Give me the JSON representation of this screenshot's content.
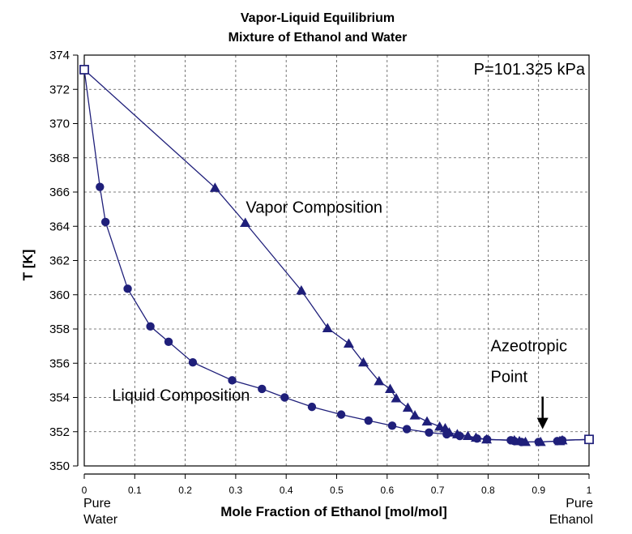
{
  "chart_data": {
    "type": "line",
    "title": "Vapor-Liquid Equilibrium",
    "subtitle": "Mixture of Ethanol and Water",
    "xlabel": "Mole Fraction of Ethanol [mol/mol]",
    "ylabel": "T [K]",
    "xlim": [
      0,
      1
    ],
    "ylim": [
      350,
      374
    ],
    "grid": true,
    "x_ticks": [
      "0",
      "0.1",
      "0.2",
      "0.3",
      "0.4",
      "0.5",
      "0.6",
      "0.7",
      "0.8",
      "0.9",
      "1"
    ],
    "y_ticks": [
      "350",
      "352",
      "354",
      "356",
      "358",
      "360",
      "362",
      "364",
      "366",
      "368",
      "370",
      "372",
      "374"
    ],
    "x_end_labels": {
      "left": [
        "Pure",
        "Water"
      ],
      "right": [
        "Pure",
        "Ethanol"
      ]
    },
    "pressure_label": "P=101.325 kPa",
    "series": [
      {
        "name": "Vapor Composition",
        "marker": "triangle",
        "color": "#1f1f7a",
        "x": [
          0.0,
          0.259,
          0.319,
          0.43,
          0.482,
          0.524,
          0.553,
          0.584,
          0.606,
          0.618,
          0.641,
          0.655,
          0.679,
          0.704,
          0.715,
          0.723,
          0.739,
          0.76,
          0.776,
          0.797,
          0.852,
          0.862,
          0.874,
          0.904,
          0.942,
          0.947,
          1.0
        ],
        "y": [
          373.15,
          366.25,
          364.2,
          360.25,
          358.05,
          357.15,
          356.05,
          354.95,
          354.5,
          353.95,
          353.4,
          352.95,
          352.6,
          352.3,
          352.2,
          351.95,
          351.85,
          351.75,
          351.65,
          351.55,
          351.5,
          351.45,
          351.4,
          351.4,
          351.45,
          351.5,
          351.55
        ]
      },
      {
        "name": "Liquid Composition",
        "marker": "circle",
        "color": "#1f1f7a",
        "x": [
          0.0,
          0.031,
          0.042,
          0.086,
          0.131,
          0.167,
          0.215,
          0.293,
          0.352,
          0.397,
          0.451,
          0.509,
          0.563,
          0.61,
          0.639,
          0.683,
          0.718,
          0.744,
          0.778,
          0.798,
          0.845,
          0.852,
          0.866,
          0.9,
          0.937,
          0.947,
          1.0
        ],
        "y": [
          373.15,
          366.3,
          364.25,
          360.35,
          358.15,
          357.25,
          356.05,
          355.0,
          354.5,
          354.0,
          353.45,
          353.0,
          352.65,
          352.35,
          352.15,
          351.95,
          351.85,
          351.75,
          351.6,
          351.55,
          351.5,
          351.45,
          351.4,
          351.4,
          351.45,
          351.5,
          351.55
        ]
      }
    ],
    "annotations": [
      {
        "text": "Vapor Composition",
        "x": 0.32,
        "y": 364.8
      },
      {
        "text": "Liquid Composition",
        "x": 0.055,
        "y": 353.8
      },
      {
        "text": "Azeotropic",
        "x": 0.805,
        "y": 356.7
      },
      {
        "text": "Point",
        "x": 0.805,
        "y": 354.9
      }
    ],
    "arrow": {
      "from": [
        0.908,
        354.05
      ],
      "to": [
        0.908,
        352.15
      ]
    }
  }
}
